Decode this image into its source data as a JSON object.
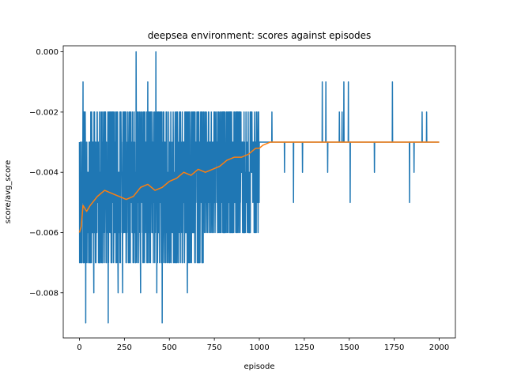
{
  "chart_data": {
    "type": "line",
    "title": "deepsea environment: scores against episodes",
    "xlabel": "episode",
    "ylabel": "score/avg_score",
    "xlim": [
      -90,
      2090
    ],
    "ylim": [
      -0.0095,
      0.0002
    ],
    "xticks": [
      0,
      250,
      500,
      750,
      1000,
      1250,
      1500,
      1750,
      2000
    ],
    "yticks": [
      0.0,
      -0.002,
      -0.004,
      -0.006,
      -0.008
    ],
    "xtick_labels": [
      "0",
      "250",
      "500",
      "750",
      "1000",
      "1250",
      "1500",
      "1750",
      "2000"
    ],
    "ytick_labels": [
      "0.000",
      "−0.002",
      "−0.004",
      "−0.006",
      "−0.008"
    ],
    "grid": false,
    "legend": "none",
    "episodes": 2000,
    "series": [
      {
        "role": "score",
        "color": "#1f77b4",
        "description": "per-episode score, noisy in [-0.009, 0] for episodes 0-1000, mostly -0.003 afterwards",
        "spikes": [
          {
            "x": 20,
            "y": -0.001
          },
          {
            "x": 35,
            "y": -0.009
          },
          {
            "x": 80,
            "y": -0.008
          },
          {
            "x": 160,
            "y": -0.009
          },
          {
            "x": 215,
            "y": -0.008
          },
          {
            "x": 240,
            "y": -0.008
          },
          {
            "x": 315,
            "y": 0.0
          },
          {
            "x": 340,
            "y": -0.008
          },
          {
            "x": 380,
            "y": -0.001
          },
          {
            "x": 425,
            "y": 0.0
          },
          {
            "x": 430,
            "y": -0.008
          },
          {
            "x": 460,
            "y": -0.009
          },
          {
            "x": 600,
            "y": -0.008
          },
          {
            "x": 1070,
            "y": -0.002
          },
          {
            "x": 1140,
            "y": -0.004
          },
          {
            "x": 1190,
            "y": -0.005
          },
          {
            "x": 1240,
            "y": -0.004
          },
          {
            "x": 1350,
            "y": -0.001
          },
          {
            "x": 1370,
            "y": -0.001
          },
          {
            "x": 1380,
            "y": -0.004
          },
          {
            "x": 1445,
            "y": -0.002
          },
          {
            "x": 1460,
            "y": -0.002
          },
          {
            "x": 1470,
            "y": -0.001
          },
          {
            "x": 1495,
            "y": -0.001
          },
          {
            "x": 1505,
            "y": -0.005
          },
          {
            "x": 1640,
            "y": -0.004
          },
          {
            "x": 1740,
            "y": -0.001
          },
          {
            "x": 1835,
            "y": -0.005
          },
          {
            "x": 1860,
            "y": -0.004
          },
          {
            "x": 1905,
            "y": -0.002
          },
          {
            "x": 1930,
            "y": -0.002
          }
        ]
      },
      {
        "role": "avg_score",
        "color": "#ff7f0e",
        "points": [
          [
            0,
            -0.006
          ],
          [
            10,
            -0.0058
          ],
          [
            20,
            -0.0051
          ],
          [
            40,
            -0.0053
          ],
          [
            60,
            -0.0051
          ],
          [
            100,
            -0.0048
          ],
          [
            140,
            -0.0046
          ],
          [
            180,
            -0.0047
          ],
          [
            220,
            -0.0048
          ],
          [
            260,
            -0.0049
          ],
          [
            300,
            -0.0048
          ],
          [
            340,
            -0.0045
          ],
          [
            380,
            -0.0044
          ],
          [
            420,
            -0.0046
          ],
          [
            460,
            -0.0045
          ],
          [
            500,
            -0.0043
          ],
          [
            540,
            -0.0042
          ],
          [
            580,
            -0.004
          ],
          [
            620,
            -0.0041
          ],
          [
            660,
            -0.0039
          ],
          [
            700,
            -0.004
          ],
          [
            740,
            -0.0039
          ],
          [
            780,
            -0.0038
          ],
          [
            820,
            -0.0036
          ],
          [
            860,
            -0.0035
          ],
          [
            900,
            -0.0035
          ],
          [
            940,
            -0.0034
          ],
          [
            980,
            -0.0032
          ],
          [
            1000,
            -0.0032
          ],
          [
            1020,
            -0.0031
          ],
          [
            1060,
            -0.003
          ],
          [
            1100,
            -0.003
          ],
          [
            1200,
            -0.003
          ],
          [
            1300,
            -0.003
          ],
          [
            1400,
            -0.003
          ],
          [
            1500,
            -0.003
          ],
          [
            1600,
            -0.003
          ],
          [
            1700,
            -0.003
          ],
          [
            1800,
            -0.003
          ],
          [
            1900,
            -0.003
          ],
          [
            2000,
            -0.003
          ]
        ]
      }
    ]
  }
}
